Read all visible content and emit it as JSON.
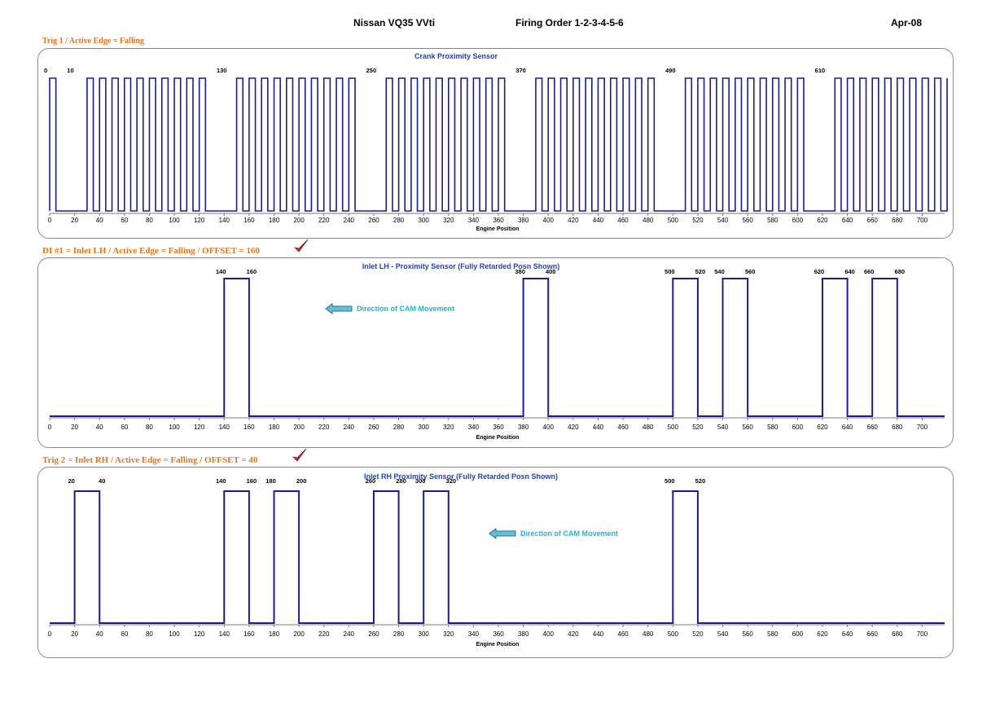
{
  "header": {
    "title": "Nissan VQ35 VVti",
    "firing_order": "Firing Order 1-2-3-4-5-6",
    "date": "Apr-08"
  },
  "colors": {
    "signal": "#1a1a9a",
    "accent_label": "#e8741a",
    "chart_title": "#1f3fc8",
    "annotation": "#19b6d4",
    "checkmark": "#c4282d"
  },
  "sections": [
    {
      "label": "Trig 1 / Active Edge = Falling",
      "checkmark": false
    },
    {
      "label": "DI #1 = Inlet LH / Active Edge = Falling /  OFFSET = 160",
      "checkmark": true
    },
    {
      "label": "Trig 2 = Inlet RH / Active Edge = Falling /  OFFSET = 40",
      "checkmark": true
    }
  ],
  "chart_data": [
    {
      "type": "line",
      "title": "Crank  Proximity Sensor",
      "xlabel": "Engine Position",
      "ylabel": "",
      "xlim": [
        0,
        720
      ],
      "ylim": [
        0,
        1
      ],
      "xticks": [
        0,
        20,
        40,
        60,
        80,
        100,
        120,
        140,
        160,
        180,
        200,
        220,
        240,
        260,
        280,
        300,
        320,
        340,
        360,
        380,
        400,
        420,
        440,
        460,
        480,
        500,
        520,
        540,
        560,
        580,
        600,
        620,
        640,
        660,
        680,
        700
      ],
      "grid": false,
      "tooth_period": 10,
      "tooth_duty": 0.5,
      "high_spans": [
        [
          0,
          10
        ],
        [
          30,
          130
        ],
        [
          150,
          250
        ],
        [
          270,
          370
        ],
        [
          390,
          490
        ],
        [
          510,
          610
        ],
        [
          630,
          720
        ]
      ],
      "point_labels": [
        {
          "x": 0,
          "text": "0"
        },
        {
          "x": 10,
          "text": "10"
        },
        {
          "x": 130,
          "text": "130"
        },
        {
          "x": 250,
          "text": "250"
        },
        {
          "x": 370,
          "text": "370"
        },
        {
          "x": 490,
          "text": "490"
        },
        {
          "x": 610,
          "text": "610"
        }
      ],
      "annotation": ""
    },
    {
      "type": "line",
      "title": "Inlet LH - Proximity Sensor (Fully Retarded Posn Shown)",
      "xlabel": "Engine Position",
      "ylabel": "",
      "xlim": [
        0,
        720
      ],
      "ylim": [
        0,
        1
      ],
      "xticks": [
        0,
        20,
        40,
        60,
        80,
        100,
        120,
        140,
        160,
        180,
        200,
        220,
        240,
        260,
        280,
        300,
        320,
        340,
        360,
        380,
        400,
        420,
        440,
        460,
        480,
        500,
        520,
        540,
        560,
        580,
        600,
        620,
        640,
        660,
        680,
        700
      ],
      "grid": false,
      "pulses": [
        [
          140,
          160
        ],
        [
          380,
          400
        ],
        [
          500,
          520
        ],
        [
          540,
          560
        ],
        [
          620,
          640
        ],
        [
          660,
          680
        ]
      ],
      "pulse_labels": [
        "140",
        "160",
        "380",
        "400",
        "500",
        "520",
        "540",
        "560",
        "620",
        "640",
        "660",
        "680"
      ],
      "annotation": "Direction of CAM Movement"
    },
    {
      "type": "line",
      "title": "Inlet RH  Proximity Sensor (Fully Retarded Posn Shown)",
      "xlabel": "Engine Position",
      "ylabel": "",
      "xlim": [
        0,
        720
      ],
      "ylim": [
        0,
        1
      ],
      "xticks": [
        0,
        20,
        40,
        60,
        80,
        100,
        120,
        140,
        160,
        180,
        200,
        220,
        240,
        260,
        280,
        300,
        320,
        340,
        360,
        380,
        400,
        420,
        440,
        460,
        480,
        500,
        520,
        540,
        560,
        580,
        600,
        620,
        640,
        660,
        680,
        700
      ],
      "grid": false,
      "pulses": [
        [
          20,
          40
        ],
        [
          140,
          160
        ],
        [
          180,
          200
        ],
        [
          260,
          280
        ],
        [
          300,
          320
        ],
        [
          500,
          520
        ]
      ],
      "pulse_labels": [
        "20",
        "40",
        "140",
        "160",
        "180",
        "200",
        "260",
        "280",
        "300",
        "320",
        "500",
        "520"
      ],
      "annotation": "Direction of CAM Movement"
    }
  ]
}
